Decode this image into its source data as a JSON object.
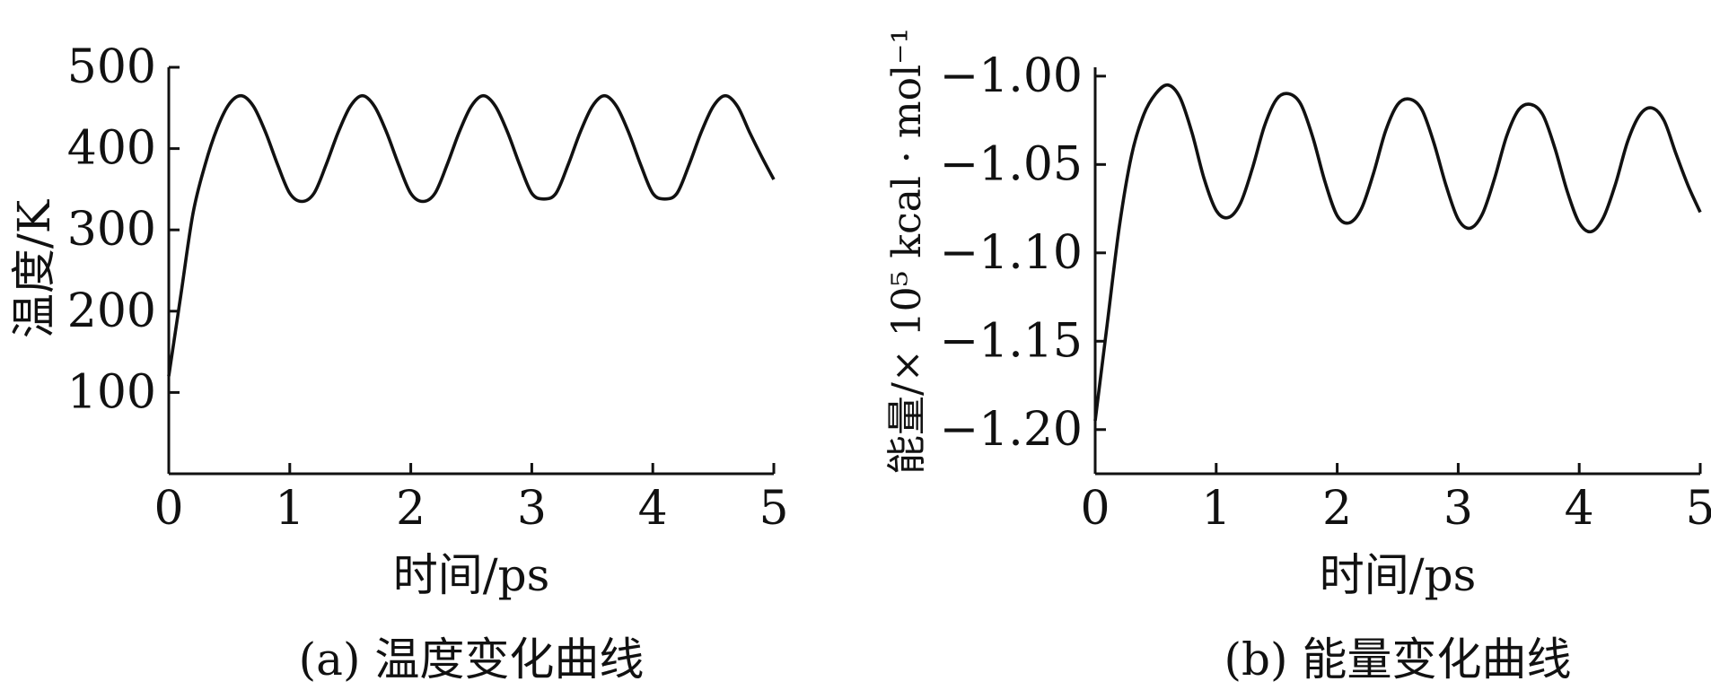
{
  "chart_data": [
    {
      "type": "line",
      "xlabel": "时间/ps",
      "ylabel": "温度/K",
      "caption": "(a) 温度变化曲线",
      "xlim": [
        0,
        5
      ],
      "ylim": [
        0,
        500
      ],
      "x_ticks": [
        "0",
        "1",
        "2",
        "3",
        "4",
        "5"
      ],
      "y_ticks": [
        "100",
        "200",
        "300",
        "400",
        "500"
      ],
      "grid": false,
      "series": [
        {
          "x": [
            0,
            0.1,
            0.2,
            0.3,
            0.4,
            0.5,
            0.6,
            0.7,
            0.8,
            0.9,
            1.0,
            1.1,
            1.2,
            1.3,
            1.4,
            1.5,
            1.6,
            1.7,
            1.8,
            1.9,
            2.0,
            2.1,
            2.2,
            2.3,
            2.4,
            2.5,
            2.6,
            2.7,
            2.8,
            2.9,
            3.0,
            3.1,
            3.2,
            3.3,
            3.4,
            3.5,
            3.6,
            3.7,
            3.8,
            3.9,
            4.0,
            4.1,
            4.2,
            4.3,
            4.4,
            4.5,
            4.6,
            4.7,
            4.8,
            4.9,
            5.0
          ],
          "values": [
            120,
            220,
            320,
            380,
            425,
            455,
            465,
            452,
            420,
            380,
            345,
            335,
            345,
            380,
            420,
            452,
            465,
            452,
            420,
            380,
            345,
            335,
            345,
            380,
            420,
            452,
            465,
            452,
            420,
            380,
            345,
            338,
            345,
            380,
            420,
            452,
            465,
            452,
            420,
            380,
            345,
            338,
            345,
            380,
            420,
            452,
            465,
            452,
            420,
            390,
            362
          ]
        }
      ]
    },
    {
      "type": "line",
      "xlabel": "时间/ps",
      "ylabel": "能量/× 10⁵ kcal · mol⁻¹",
      "caption": "(b) 能量变化曲线",
      "xlim": [
        0,
        5
      ],
      "ylim": [
        -1.225,
        -0.995
      ],
      "x_ticks": [
        "0",
        "1",
        "2",
        "3",
        "4",
        "5"
      ],
      "y_ticks": [
        "−1.00",
        "−1.05",
        "−1.10",
        "−1.15",
        "−1.20"
      ],
      "grid": false,
      "series": [
        {
          "x": [
            0,
            0.1,
            0.2,
            0.3,
            0.4,
            0.5,
            0.6,
            0.7,
            0.8,
            0.9,
            1.0,
            1.1,
            1.2,
            1.3,
            1.4,
            1.5,
            1.6,
            1.7,
            1.8,
            1.9,
            2.0,
            2.1,
            2.2,
            2.3,
            2.4,
            2.5,
            2.6,
            2.7,
            2.8,
            2.9,
            3.0,
            3.1,
            3.2,
            3.3,
            3.4,
            3.5,
            3.6,
            3.7,
            3.8,
            3.9,
            4.0,
            4.1,
            4.2,
            4.3,
            4.4,
            4.5,
            4.6,
            4.7,
            4.8,
            4.9,
            5.0
          ],
          "values": [
            -1.195,
            -1.14,
            -1.085,
            -1.045,
            -1.022,
            -1.01,
            -1.005,
            -1.012,
            -1.032,
            -1.058,
            -1.076,
            -1.08,
            -1.072,
            -1.052,
            -1.028,
            -1.013,
            -1.01,
            -1.016,
            -1.035,
            -1.06,
            -1.079,
            -1.083,
            -1.075,
            -1.055,
            -1.031,
            -1.016,
            -1.013,
            -1.019,
            -1.038,
            -1.062,
            -1.081,
            -1.086,
            -1.078,
            -1.058,
            -1.034,
            -1.019,
            -1.016,
            -1.022,
            -1.041,
            -1.065,
            -1.083,
            -1.088,
            -1.08,
            -1.061,
            -1.037,
            -1.022,
            -1.018,
            -1.025,
            -1.044,
            -1.062,
            -1.077
          ]
        }
      ]
    }
  ]
}
